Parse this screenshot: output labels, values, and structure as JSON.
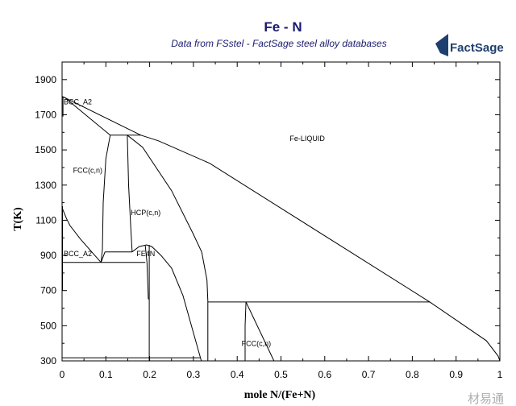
{
  "chart_data": {
    "type": "line",
    "title": "Fe - N",
    "subtitle": "Data from FSstel - FactSage steel alloy databases",
    "xlabel": "mole N/(Fe+N)",
    "ylabel": "T(K)",
    "xlim": [
      0,
      1
    ],
    "ylim": [
      300,
      2000
    ],
    "x_tick_labels": [
      "0",
      "0.1",
      "0.2",
      "0.3",
      "0.4",
      "0.5",
      "0.6",
      "0.7",
      "0.8",
      "0.9",
      "1"
    ],
    "x_tick_values": [
      0,
      0.1,
      0.2,
      0.3,
      0.4,
      0.5,
      0.6,
      0.7,
      0.8,
      0.9,
      1
    ],
    "y_tick_values": [
      300,
      500,
      700,
      900,
      1100,
      1300,
      1500,
      1700,
      1900
    ],
    "y_tick_labels": [
      "300",
      "500",
      "700",
      "900",
      "1100",
      "1300",
      "1500",
      "1700",
      "1900"
    ],
    "grid": false,
    "line_color": "#000000",
    "phase_boundaries": [
      {
        "id": "liquidus",
        "points": [
          [
            0,
            1805
          ],
          [
            0.18,
            1584
          ],
          [
            0.22,
            1552
          ],
          [
            0.337,
            1424
          ],
          [
            0.84,
            635
          ],
          [
            0.969,
            415
          ],
          [
            0.996,
            328
          ],
          [
            1,
            300
          ]
        ]
      },
      {
        "id": "bcc-fcc-upper",
        "points": [
          [
            0.005,
            1800
          ],
          [
            0.11,
            1584
          ]
        ]
      },
      {
        "id": "peritectic-1584",
        "points": [
          [
            0.11,
            1584
          ],
          [
            0.18,
            1584
          ]
        ]
      },
      {
        "id": "fcc-left",
        "points": [
          [
            0.11,
            1584
          ],
          [
            0.1,
            1450
          ],
          [
            0.094,
            1200
          ],
          [
            0.092,
            933
          ],
          [
            0.089,
            860
          ]
        ]
      },
      {
        "id": "fcc-right",
        "points": [
          [
            0.149,
            1584
          ],
          [
            0.152,
            1300
          ],
          [
            0.157,
            1050
          ],
          [
            0.16,
            920
          ]
        ]
      },
      {
        "id": "horizontal-915",
        "points": [
          [
            0.098,
            920
          ],
          [
            0.16,
            920
          ]
        ]
      },
      {
        "id": "fcc-eutectoid-link",
        "points": [
          [
            0.098,
            920
          ],
          [
            0.089,
            860
          ]
        ]
      },
      {
        "id": "eutectoid-860",
        "points": [
          [
            0,
            860
          ],
          [
            0.19,
            860
          ]
        ]
      },
      {
        "id": "bcc-fcc-lower",
        "points": [
          [
            0,
            1171
          ],
          [
            0.01,
            1110
          ],
          [
            0.018,
            1070
          ],
          [
            0.042,
            993
          ],
          [
            0.089,
            860
          ]
        ]
      },
      {
        "id": "fe4n-dome",
        "points": [
          [
            0.16,
            920
          ],
          [
            0.176,
            950
          ],
          [
            0.193,
            960
          ],
          [
            0.205,
            950
          ],
          [
            0.226,
            900
          ],
          [
            0.25,
            828
          ],
          [
            0.276,
            672
          ],
          [
            0.3,
            460
          ],
          [
            0.318,
            300
          ]
        ]
      },
      {
        "id": "fe4n-left",
        "points": [
          [
            0.19,
            955
          ],
          [
            0.194,
            860
          ],
          [
            0.197,
            650
          ]
        ]
      },
      {
        "id": "fe4n-line",
        "points": [
          [
            0.199,
            960
          ],
          [
            0.199,
            300
          ]
        ]
      },
      {
        "id": "hcp-right",
        "points": [
          [
            0.149,
            1584
          ],
          [
            0.184,
            1515
          ],
          [
            0.25,
            1268
          ],
          [
            0.3,
            1020
          ],
          [
            0.319,
            919
          ],
          [
            0.331,
            760
          ],
          [
            0.333,
            640
          ]
        ]
      },
      {
        "id": "vertical-0.333",
        "points": [
          [
            0.333,
            640
          ],
          [
            0.333,
            300
          ]
        ]
      },
      {
        "id": "horizontal-640",
        "points": [
          [
            0.333,
            635
          ],
          [
            0.84,
            635
          ]
        ]
      },
      {
        "id": "horizontal-315",
        "points": [
          [
            0,
            318
          ],
          [
            0.316,
            318
          ]
        ]
      },
      {
        "id": "fcc2-left",
        "points": [
          [
            0.42,
            635
          ],
          [
            0.418,
            500
          ],
          [
            0.418,
            300
          ]
        ]
      },
      {
        "id": "fcc2-right",
        "points": [
          [
            0.42,
            635
          ],
          [
            0.484,
            300
          ]
        ]
      },
      {
        "id": "bcc-left-edge",
        "points": [
          [
            0.002,
            1800
          ],
          [
            0.002,
            1690
          ]
        ]
      },
      {
        "id": "bcc-left-edge-2",
        "points": [
          [
            0.001,
            1180
          ],
          [
            0.001,
            700
          ]
        ]
      }
    ],
    "phase_labels": [
      {
        "text": "BCC_A2",
        "x": -0.03,
        "y": 1760
      },
      {
        "text": "FCC(c,n)",
        "x": 0.025,
        "y": 1370
      },
      {
        "text": "HCP(c,n)",
        "x": 0.157,
        "y": 1130
      },
      {
        "text": "Fe-LIQUID",
        "x": 0.52,
        "y": 1550
      },
      {
        "text": "BCC_A2",
        "x": -0.03,
        "y": 895
      },
      {
        "text": "FE4N",
        "x": 0.17,
        "y": 895
      },
      {
        "text": "FCC(c,n)",
        "x": 0.41,
        "y": 385
      }
    ]
  },
  "logo": {
    "text": "FactSage"
  },
  "watermark": {
    "text": "材易通"
  }
}
